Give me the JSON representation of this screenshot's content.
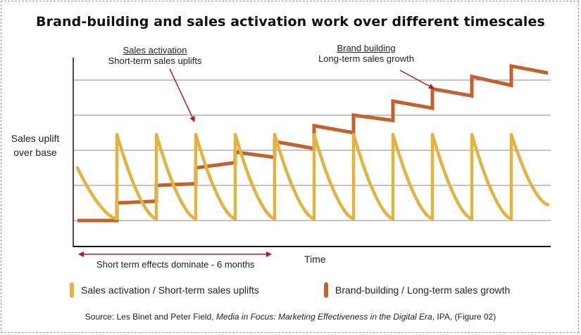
{
  "title": "Brand-building and sales activation work over different timescales",
  "annotations": {
    "sales_activation": {
      "heading": "Sales activation",
      "subtext": "Short-term sales uplifts"
    },
    "brand_building": {
      "heading": "Brand building",
      "subtext": "Long-term sales growth"
    }
  },
  "range_label": "Short term effects dominate - 6 months",
  "legend": [
    {
      "label": "Sales activation / Short-term sales uplifts",
      "color": "#E1B33F"
    },
    {
      "label": "Brand-building / Long-term sales growth",
      "color": "#C4622D"
    }
  ],
  "source": {
    "prefix": "Source: Les Binet and Peter Field, ",
    "italic": "Media in Focus: Marketing Effectiveness in the Digital Era",
    "suffix": ", IPA, (Figure 02)"
  },
  "colors": {
    "sales_activation": "#E1B33F",
    "brand_building": "#C4622D",
    "arrow": "#B01E23",
    "grid": "#8a8a8a",
    "axis": "#111111"
  },
  "chart_data": {
    "type": "line",
    "title": "Brand-building and sales activation work over different timescales",
    "xlabel": "Time",
    "ylabel": "Sales uplift over base",
    "xlim": [
      0,
      12
    ],
    "ylim": [
      0,
      5
    ],
    "grid": true,
    "legend_position": "bottom",
    "series": [
      {
        "name": "Sales activation / Short-term sales uplifts",
        "style": "repeating spike then decay",
        "spike_times": [
          1,
          2,
          3,
          4,
          5,
          6,
          7,
          8,
          9,
          10,
          11
        ],
        "start_level": 1.5,
        "peak_level": 2.45,
        "decay_to": 0.05,
        "end_level": 0.45,
        "x_end": 11.93
      },
      {
        "name": "Brand-building / Long-term sales growth",
        "style": "staircase",
        "points": [
          [
            0,
            0
          ],
          [
            1,
            0
          ],
          [
            1,
            0.5
          ],
          [
            2,
            0.55
          ],
          [
            2,
            1.0
          ],
          [
            3,
            1.05
          ],
          [
            3,
            1.5
          ],
          [
            4,
            1.65
          ],
          [
            4,
            1.95
          ],
          [
            5,
            1.8
          ],
          [
            5,
            2.25
          ],
          [
            6,
            2.05
          ],
          [
            6,
            2.7
          ],
          [
            7,
            2.5
          ],
          [
            7,
            3.0
          ],
          [
            8,
            2.85
          ],
          [
            8,
            3.4
          ],
          [
            9,
            3.2
          ],
          [
            9,
            3.75
          ],
          [
            10,
            3.55
          ],
          [
            10,
            4.1
          ],
          [
            11,
            3.85
          ],
          [
            11,
            4.4
          ],
          [
            11.93,
            4.2
          ]
        ]
      }
    ]
  }
}
